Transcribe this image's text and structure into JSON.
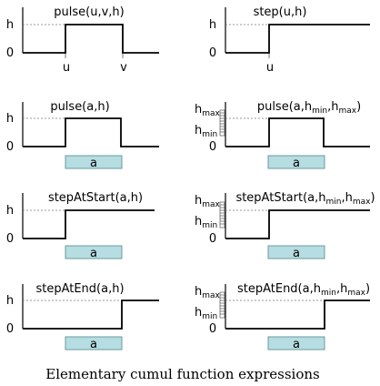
{
  "caption": "Elementary cumul function expressions",
  "panels": [
    {
      "title": "pulse(u,v,h)",
      "h": "h",
      "zero": "0",
      "u": "u",
      "v": "v",
      "interval": ""
    },
    {
      "title": "step(u,h)",
      "h": "h",
      "zero": "0",
      "u": "u",
      "interval": ""
    },
    {
      "title": "pulse(a,h)",
      "h": "h",
      "zero": "0",
      "interval": "a"
    },
    {
      "title_parts": [
        "pulse(a,h",
        "min",
        ",h",
        "max",
        ")"
      ],
      "hmax": "h",
      "hmax_sub": "max",
      "hmin": "h",
      "hmin_sub": "min",
      "zero": "0",
      "interval": "a"
    },
    {
      "title": "stepAtStart(a,h)",
      "h": "h",
      "zero": "0",
      "interval": "a"
    },
    {
      "title_parts": [
        "stepAtStart(a,h",
        "min",
        ",h",
        "max",
        ")"
      ],
      "hmax": "h",
      "hmax_sub": "max",
      "hmin": "h",
      "hmin_sub": "min",
      "zero": "0",
      "interval": "a"
    },
    {
      "title": "stepAtEnd(a,h)",
      "h": "h",
      "zero": "0",
      "interval": "a"
    },
    {
      "title_parts": [
        "stepAtEnd(a,h",
        "min",
        ",h",
        "max",
        ")"
      ],
      "hmax": "h",
      "hmax_sub": "max",
      "hmin": "h",
      "hmin_sub": "min",
      "zero": "0",
      "interval": "a"
    }
  ]
}
